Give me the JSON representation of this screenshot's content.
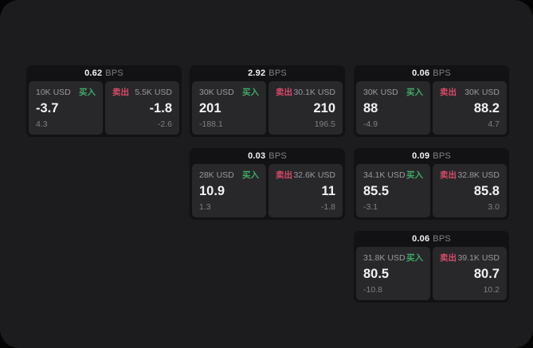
{
  "labels": {
    "buy": "买入",
    "sell": "卖出",
    "bps": "BPS"
  },
  "colors": {
    "outer_bg": "#050506",
    "window_bg": "#1c1c1e",
    "card_bg": "#121214",
    "panel_bg": "#28282b",
    "text_primary": "#f2f2f3",
    "text_secondary": "#9a9a9e",
    "text_muted": "#808084",
    "buy_green": "#3dab67",
    "sell_red": "#d84a68"
  },
  "cards": [
    {
      "bps": "0.62",
      "buy": {
        "amount": "10K USD",
        "value": "-3.7",
        "delta": "4.3"
      },
      "sell": {
        "amount": "5.5K USD",
        "value": "-1.8",
        "delta": "-2.6"
      }
    },
    {
      "bps": "2.92",
      "buy": {
        "amount": "30K USD",
        "value": "201",
        "delta": "-188.1"
      },
      "sell": {
        "amount": "30.1K USD",
        "value": "210",
        "delta": "196.5"
      }
    },
    {
      "bps": "0.06",
      "buy": {
        "amount": "30K USD",
        "value": "88",
        "delta": "-4.9"
      },
      "sell": {
        "amount": "30K USD",
        "value": "88.2",
        "delta": "4.7"
      }
    },
    {
      "bps": "0.03",
      "buy": {
        "amount": "28K USD",
        "value": "10.9",
        "delta": "1.3"
      },
      "sell": {
        "amount": "32.6K USD",
        "value": "11",
        "delta": "-1.8"
      }
    },
    {
      "bps": "0.09",
      "buy": {
        "amount": "34.1K USD",
        "value": "85.5",
        "delta": "-3.1"
      },
      "sell": {
        "amount": "32.8K USD",
        "value": "85.8",
        "delta": "3.0"
      }
    },
    {
      "bps": "0.06",
      "buy": {
        "amount": "31.8K USD",
        "value": "80.5",
        "delta": "-10.8"
      },
      "sell": {
        "amount": "39.1K USD",
        "value": "80.7",
        "delta": "10.2"
      }
    }
  ]
}
